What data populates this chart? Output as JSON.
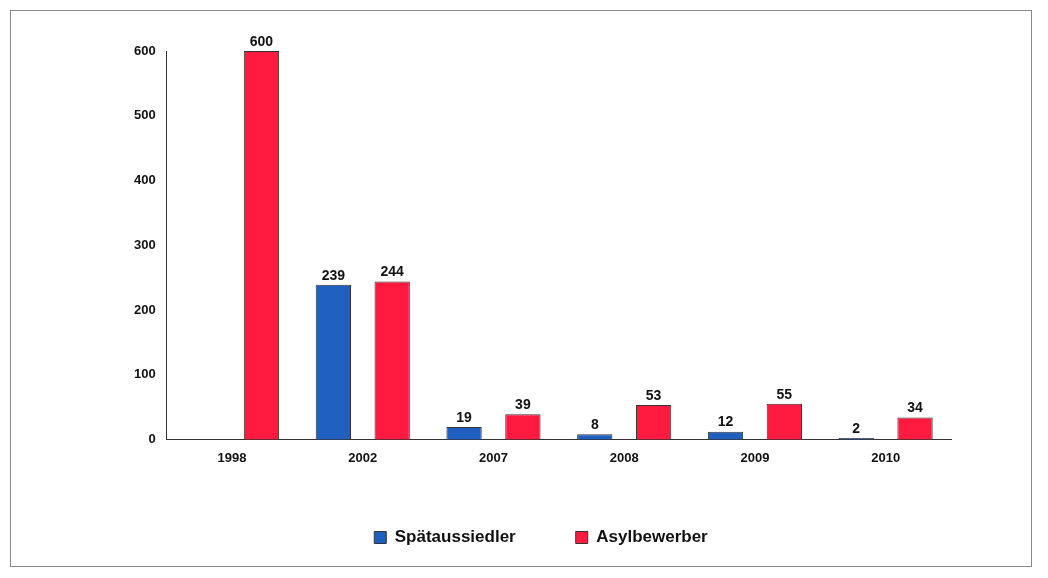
{
  "chart_data": {
    "type": "bar",
    "categories": [
      "1998",
      "2002",
      "2007",
      "2008",
      "2009",
      "2010"
    ],
    "series": [
      {
        "name": "Spätaussiedler",
        "color": "#1f5fc0",
        "values": [
          null,
          239,
          19,
          8,
          12,
          2
        ]
      },
      {
        "name": "Asylbewerber",
        "color": "#ff1a40",
        "values": [
          600,
          244,
          39,
          53,
          55,
          34
        ]
      }
    ],
    "ylim": [
      0,
      600
    ],
    "yticks": [
      0,
      100,
      200,
      300,
      400,
      500,
      600
    ],
    "grid": false,
    "legend": "bottom",
    "data_labels": true
  }
}
